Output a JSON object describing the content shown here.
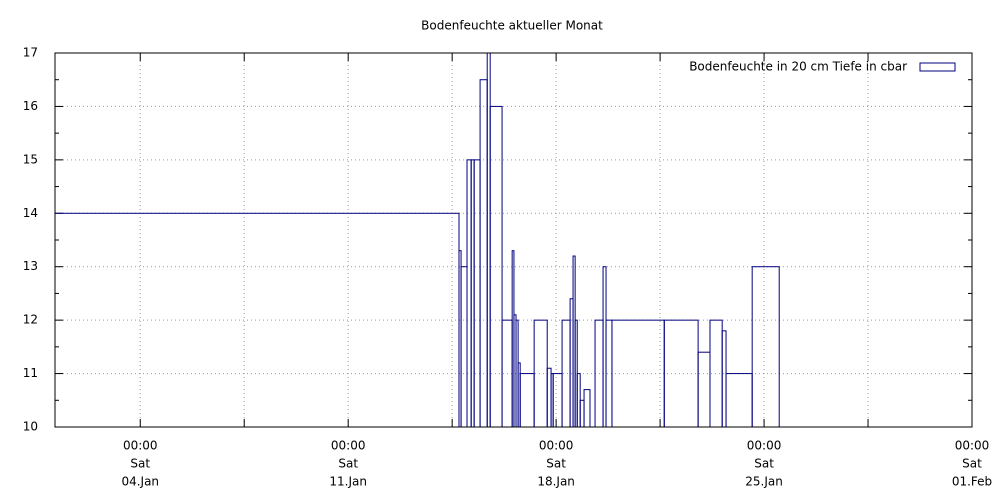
{
  "chart_data": {
    "type": "boxes",
    "title": "Bodenfeuchte aktueller Monat",
    "legend": "top right",
    "grid": true,
    "xlim": [
      0.13,
      31
    ],
    "ylim": [
      10,
      17
    ],
    "yticks": [
      10,
      11,
      12,
      13,
      14,
      15,
      16,
      17
    ],
    "yminorticks": [
      10.5,
      11.5,
      12.5,
      13.5,
      14.5,
      15.5,
      16.5
    ],
    "xticks": [
      {
        "value": 3,
        "label": [
          "00:00",
          "Sat",
          "04.Jan"
        ]
      },
      {
        "value": 10,
        "label": [
          "00:00",
          "Sat",
          "11.Jan"
        ]
      },
      {
        "value": 17,
        "label": [
          "00:00",
          "Sat",
          "18.Jan"
        ]
      },
      {
        "value": 24,
        "label": [
          "00:00",
          "Sat",
          "25.Jan"
        ]
      },
      {
        "value": 31,
        "label": [
          "00:00",
          "Sat",
          "01.Feb"
        ]
      }
    ],
    "xminorticks": [
      6.5,
      13.5,
      20.5,
      27.5
    ],
    "series": [
      {
        "name": "Bodenfeuchte in 20 cm Tiefe in cbar",
        "color": "#000080",
        "bins": [
          0.13,
          13.73,
          13.8,
          14.0,
          14.14,
          14.24,
          14.44,
          14.68,
          14.78,
          15.18,
          15.52,
          15.58,
          15.65,
          15.72,
          15.79,
          16.26,
          16.7,
          16.83,
          16.9,
          17.2,
          17.47,
          17.57,
          17.64,
          17.71,
          17.81,
          17.94,
          18.14,
          18.31,
          18.58,
          18.68,
          18.88,
          20.64,
          21.78,
          22.18,
          22.59,
          22.72,
          23.6,
          24.51
        ],
        "values": [
          14,
          13.3,
          13,
          15,
          15,
          15,
          16.5,
          17,
          16,
          12,
          13.3,
          12.1,
          12,
          11.2,
          11,
          12,
          11.1,
          11,
          11,
          12,
          12.4,
          13.2,
          12,
          11,
          10.5,
          10.7,
          10,
          12,
          13,
          12,
          12,
          12,
          11.4,
          12,
          11.8,
          11,
          13
        ]
      }
    ]
  }
}
